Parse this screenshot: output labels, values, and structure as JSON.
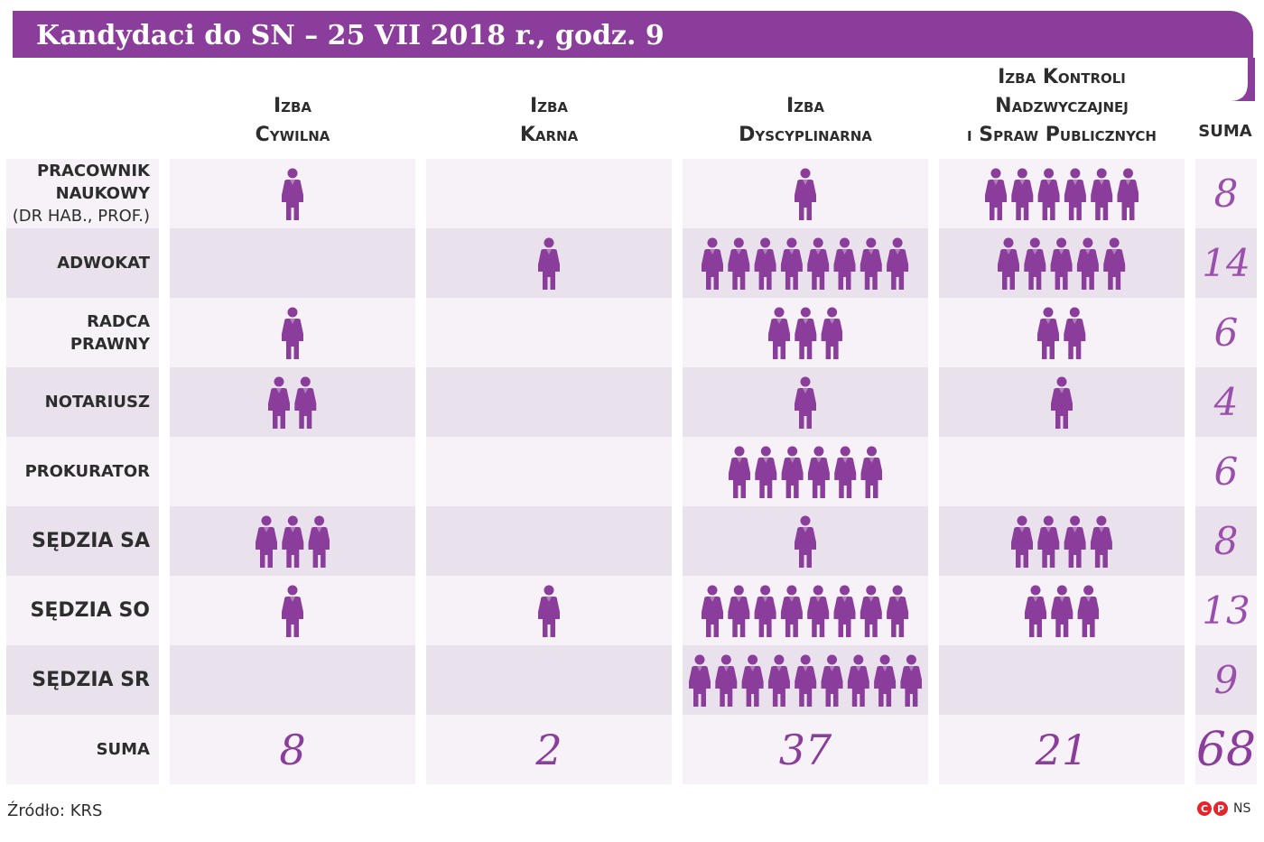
{
  "title": "Kandydaci do SN – 25 VII 2018 r., godz. 9",
  "columns": [
    {
      "line1": "Izba",
      "line2": "Cywilna",
      "line3": ""
    },
    {
      "line1": "Izba",
      "line2": "Karna",
      "line3": ""
    },
    {
      "line1": "Izba",
      "line2": "Dyscyplinarna",
      "line3": ""
    },
    {
      "line1": "Izba Kontroli",
      "line2": "Nadzwyczajnej",
      "line3": "i Spraw Publicznych"
    }
  ],
  "suma_header": "SUMA",
  "rows": [
    {
      "label": [
        "PRACOWNIK",
        "NAUKOWY",
        "(DR HAB., PROF.)"
      ],
      "light_last": true
    },
    {
      "label": [
        "ADWOKAT"
      ]
    },
    {
      "label": [
        "RADCA",
        "PRAWNY"
      ]
    },
    {
      "label": [
        "NOTARIUSZ"
      ]
    },
    {
      "label": [
        "PROKURATOR"
      ]
    },
    {
      "label": [
        "SĘDZIA SA"
      ],
      "big": true
    },
    {
      "label": [
        "SĘDZIA SO"
      ],
      "big": true
    },
    {
      "label": [
        "SĘDZIA SR"
      ],
      "big": true
    }
  ],
  "total_row_label": "SUMA",
  "chart_data": {
    "type": "table",
    "title": "Kandydaci do SN – 25 VII 2018 r., godz. 9",
    "categories": [
      "PRACOWNIK NAUKOWY (DR HAB., PROF.)",
      "ADWOKAT",
      "RADCA PRAWNY",
      "NOTARIUSZ",
      "PROKURATOR",
      "SĘDZIA SA",
      "SĘDZIA SO",
      "SĘDZIA SR"
    ],
    "series": [
      {
        "name": "Izba Cywilna",
        "values": [
          1,
          0,
          1,
          2,
          0,
          3,
          1,
          0
        ]
      },
      {
        "name": "Izba Karna",
        "values": [
          0,
          1,
          0,
          0,
          0,
          0,
          1,
          0
        ]
      },
      {
        "name": "Izba Dyscyplinarna",
        "values": [
          1,
          8,
          3,
          1,
          6,
          1,
          8,
          9
        ]
      },
      {
        "name": "Izba Kontroli Nadzwyczajnej i Spraw Publicznych",
        "values": [
          6,
          5,
          2,
          1,
          0,
          4,
          3,
          0
        ]
      }
    ],
    "row_totals": [
      "8",
      "14",
      "6",
      "4",
      "6",
      "8",
      "13",
      "9"
    ],
    "column_totals": [
      "8",
      "2",
      "37",
      "21"
    ],
    "grand_total": "68"
  },
  "colors": {
    "accent": "#8b3d9b",
    "icon": "#8b3d9b",
    "number": "#9b4fac",
    "cell_light": "#f6f2f7",
    "cell_dark": "#e9e1ec"
  },
  "icon_name": "person-icon",
  "source": "Źródło: KRS",
  "credit": {
    "c": "C",
    "p": "P",
    "ns": "NS"
  }
}
